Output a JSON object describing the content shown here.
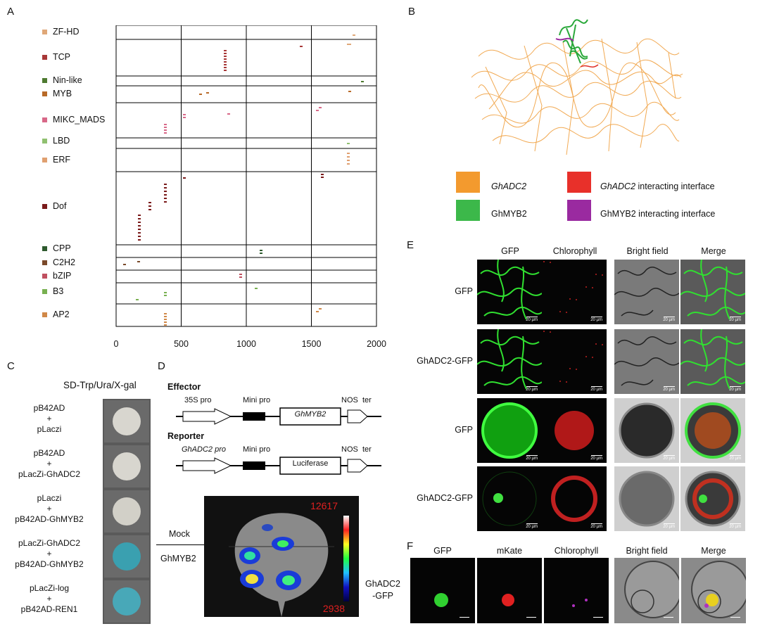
{
  "panels": {
    "A": {
      "label": "A",
      "families": [
        {
          "name": "ZF-HD",
          "color": "#e0a878"
        },
        {
          "name": "TCP",
          "color": "#a83838"
        },
        {
          "name": "Nin-like",
          "color": "#4e7a30"
        },
        {
          "name": "MYB",
          "color": "#b86a28"
        },
        {
          "name": "MIKC_MADS",
          "color": "#d86888"
        },
        {
          "name": "LBD",
          "color": "#90c070"
        },
        {
          "name": "ERF",
          "color": "#e0a070"
        },
        {
          "name": "Dof",
          "color": "#7a1a1a"
        },
        {
          "name": "CPP",
          "color": "#2e5a2e"
        },
        {
          "name": "C2H2",
          "color": "#7a4a2a"
        },
        {
          "name": "bZIP",
          "color": "#c05060"
        },
        {
          "name": "B3",
          "color": "#78b050"
        },
        {
          "name": "AP2",
          "color": "#d08848"
        }
      ],
      "x_ticks": [
        "0",
        "500",
        "1000",
        "1500",
        "2000"
      ]
    },
    "B": {
      "label": "B",
      "legend": [
        {
          "text": "GhADC2",
          "color": "#f39a2e",
          "italic": true
        },
        {
          "text": "GhADC2 interacting interface",
          "color": "#e8302a",
          "italic_part": "GhADC2"
        },
        {
          "text": "GhMYB2",
          "color": "#3cb84a",
          "italic": false
        },
        {
          "text": "GhMYB2 interacting interface",
          "color": "#9a2aa0",
          "italic": false
        }
      ]
    },
    "C": {
      "label": "C",
      "title": "SD-Trp/Ura/X-gal",
      "rows": [
        {
          "line1": "pB42AD",
          "plus": "+",
          "line2": "pLaczi",
          "spot": "#d8d6cf"
        },
        {
          "line1": "pB42AD",
          "plus": "+",
          "line2": "pLacZi-GhADC2",
          "spot": "#d8d6cf"
        },
        {
          "line1": "pLaczi",
          "plus": "+",
          "line2": "pB42AD-GhMYB2",
          "spot": "#d2d0c8"
        },
        {
          "line1": "pLacZi-GhADC2",
          "plus": "+",
          "line2": "pB42AD-GhMYB2",
          "spot": "#3aa0b0"
        },
        {
          "line1": "pLacZi-log",
          "plus": "+",
          "line2": "pB42AD-REN1",
          "spot": "#48a8b8"
        }
      ]
    },
    "D": {
      "label": "D",
      "effector_title": "Effector",
      "reporter_title": "Reporter",
      "effector": {
        "promoter": "35S pro",
        "mini": "Mini pro",
        "gene": "GhMYB2",
        "ter": "NOS  ter"
      },
      "reporter": {
        "promoter": "GhADC2 pro",
        "mini": "Mini pro",
        "gene": "Luciferase",
        "ter": "NOS  ter"
      },
      "mock_label": "Mock",
      "treat_label": "GhMYB2",
      "scale_max": "12617",
      "scale_min": "2938"
    },
    "E": {
      "label": "E",
      "headers": [
        "GFP",
        "Chlorophyll",
        "Bright field",
        "Merge"
      ],
      "rows": [
        "GFP",
        "GhADC2-GFP",
        "GFP",
        "GhADC2-GFP"
      ],
      "scale_text": "20 µm"
    },
    "F": {
      "label": "F",
      "headers": [
        "GFP",
        "mKate",
        "Chlorophyll",
        "Bright field",
        "Merge"
      ],
      "row_line1": "GhADC2",
      "row_line2": "-GFP"
    }
  }
}
